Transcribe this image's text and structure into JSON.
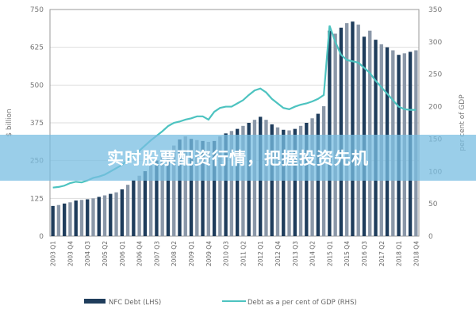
{
  "chart_data": {
    "type": "bar+line",
    "ylabel": "$ billion",
    "y2label": "per cent of GDP",
    "ylim": [
      0,
      750
    ],
    "y2lim": [
      0,
      350
    ],
    "yticks": [
      0,
      125,
      250,
      375,
      500,
      625,
      750
    ],
    "y2ticks": [
      0,
      50,
      100,
      150,
      200,
      250,
      300,
      350
    ],
    "grid": true,
    "legend_placement": "bottom",
    "x_tick_labels": [
      "2003 Q1",
      "2003 Q4",
      "2004 Q3",
      "2005 Q2",
      "2006 Q1",
      "2006 Q4",
      "2007 Q3",
      "2008 Q2",
      "2009 Q1",
      "2009 Q4",
      "2010 Q3",
      "2011 Q2",
      "2012 Q1",
      "2012 Q4",
      "2013 Q3",
      "2014 Q2",
      "2015 Q1",
      "2015 Q4",
      "2016 Q3",
      "2017 Q2",
      "2018 Q1",
      "2018 Q4"
    ],
    "x_start_year": 2003,
    "series": [
      {
        "name": "NFC Debt (LHS)",
        "type": "bar",
        "axis": "left",
        "color": "#1f3d5c",
        "values": [
          100,
          103,
          108,
          112,
          118,
          120,
          122,
          125,
          130,
          135,
          140,
          145,
          155,
          170,
          185,
          200,
          215,
          235,
          250,
          265,
          280,
          300,
          320,
          330,
          322,
          318,
          315,
          312,
          315,
          330,
          340,
          348,
          355,
          365,
          375,
          385,
          395,
          385,
          370,
          360,
          352,
          350,
          355,
          365,
          375,
          390,
          405,
          430,
          680,
          670,
          690,
          705,
          710,
          700,
          660,
          680,
          650,
          635,
          625,
          615,
          600,
          605,
          610,
          615
        ]
      },
      {
        "name": "Debt as a per cent of GDP (RHS)",
        "type": "line",
        "axis": "right",
        "color": "#4dc3c0",
        "values": [
          75,
          76,
          78,
          82,
          84,
          83,
          86,
          90,
          92,
          95,
          100,
          105,
          110,
          118,
          125,
          132,
          140,
          148,
          155,
          162,
          170,
          175,
          177,
          180,
          182,
          185,
          185,
          180,
          192,
          198,
          200,
          200,
          205,
          210,
          218,
          225,
          228,
          222,
          212,
          205,
          198,
          196,
          200,
          203,
          205,
          208,
          212,
          218,
          325,
          300,
          280,
          272,
          270,
          268,
          260,
          252,
          240,
          230,
          220,
          210,
          200,
          196,
          195,
          195
        ]
      }
    ]
  },
  "banner": {
    "text": "实时股票配资行情，把握投资先机"
  }
}
